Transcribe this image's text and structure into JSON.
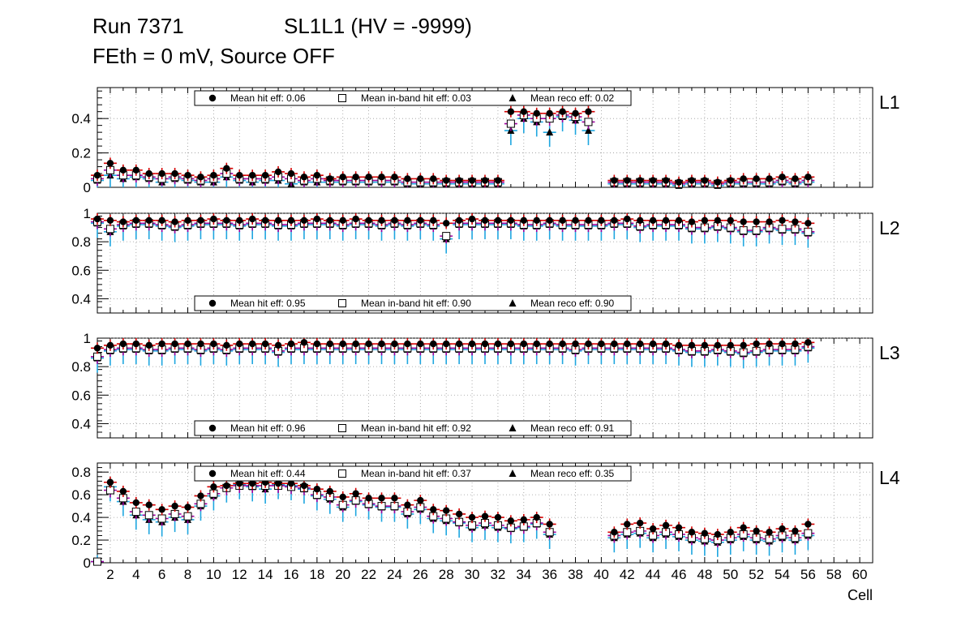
{
  "title": {
    "run": "Run 7371",
    "sl": "SL1L1 (HV = -9999)",
    "subtitle": "FEth = 0 mV, Source OFF"
  },
  "colors": {
    "hit": "#000000",
    "hit_err": "#d40000",
    "inband": "#000000",
    "inband_err": "#a000a0",
    "reco": "#000000",
    "reco_err": "#1ea6e0",
    "grid": "#9a9a9a"
  },
  "chart_data": {
    "type": "scatter",
    "xlabel": "Cell",
    "x_tick_labels": [
      "2",
      "4",
      "6",
      "8",
      "10",
      "12",
      "14",
      "16",
      "18",
      "20",
      "22",
      "24",
      "26",
      "28",
      "30",
      "32",
      "34",
      "36",
      "38",
      "40",
      "42",
      "44",
      "46",
      "48",
      "50",
      "52",
      "54",
      "56",
      "58",
      "60"
    ],
    "xlim": [
      1,
      61
    ],
    "panels": [
      {
        "label": "L1",
        "ylim": [
          0,
          0.58
        ],
        "yticks": [
          0,
          0.2,
          0.4
        ],
        "ytick_labels": [
          "0",
          "0.2",
          "0.4"
        ],
        "legend_position": "top",
        "legend": {
          "hit": "Mean hit  eff: 0.06",
          "inband": "Mean in-band hit eff: 0.03",
          "reco": "Mean reco eff: 0.02"
        },
        "cells": [
          1,
          2,
          3,
          4,
          5,
          6,
          7,
          8,
          9,
          10,
          11,
          12,
          13,
          14,
          15,
          16,
          17,
          18,
          19,
          20,
          21,
          22,
          23,
          24,
          25,
          26,
          27,
          28,
          29,
          30,
          31,
          32,
          33,
          34,
          35,
          36,
          37,
          38,
          39,
          40,
          41,
          42,
          43,
          44,
          45,
          46,
          47,
          48,
          49,
          50,
          51,
          52,
          53,
          54,
          55,
          56
        ],
        "hit": [
          0.07,
          0.14,
          0.1,
          0.1,
          0.08,
          0.08,
          0.08,
          0.07,
          0.06,
          0.07,
          0.11,
          0.07,
          0.07,
          0.07,
          0.09,
          0.08,
          0.06,
          0.07,
          0.05,
          0.06,
          0.06,
          0.06,
          0.06,
          0.06,
          0.05,
          0.05,
          0.05,
          0.04,
          0.04,
          0.04,
          0.04,
          0.04,
          0.44,
          0.44,
          0.43,
          0.43,
          0.44,
          0.43,
          0.44,
          null,
          0.04,
          0.04,
          0.04,
          0.04,
          0.04,
          0.03,
          0.04,
          0.04,
          0.03,
          0.04,
          0.05,
          0.05,
          0.05,
          0.06,
          0.05,
          0.06
        ],
        "inband": [
          0.05,
          0.1,
          0.07,
          0.07,
          0.06,
          0.05,
          0.06,
          0.05,
          0.04,
          0.05,
          0.08,
          0.05,
          0.05,
          0.05,
          0.06,
          0.05,
          0.04,
          0.05,
          0.04,
          0.04,
          0.04,
          0.04,
          0.04,
          0.04,
          0.03,
          0.03,
          0.03,
          0.03,
          0.03,
          0.03,
          0.03,
          0.03,
          0.37,
          0.42,
          0.4,
          0.4,
          0.42,
          0.41,
          0.38,
          null,
          0.03,
          0.03,
          0.03,
          0.03,
          0.03,
          0.02,
          0.03,
          0.03,
          0.02,
          0.03,
          0.03,
          0.03,
          0.03,
          0.04,
          0.03,
          0.04
        ],
        "reco": [
          0.04,
          0.07,
          0.05,
          0.06,
          0.05,
          0.03,
          0.05,
          0.04,
          0.03,
          0.03,
          0.06,
          0.04,
          0.03,
          0.04,
          0.04,
          0.02,
          0.03,
          0.03,
          0.03,
          0.03,
          0.03,
          0.03,
          0.03,
          0.03,
          0.02,
          0.02,
          0.02,
          0.02,
          0.02,
          0.02,
          0.02,
          0.02,
          0.33,
          0.4,
          0.38,
          0.32,
          0.41,
          0.39,
          0.33,
          null,
          0.02,
          0.02,
          0.02,
          0.02,
          0.02,
          0.01,
          0.02,
          0.02,
          0.01,
          0.02,
          0.02,
          0.02,
          0.02,
          0.03,
          0.02,
          0.03
        ]
      },
      {
        "label": "L2",
        "ylim": [
          0.3,
          1.0
        ],
        "yticks": [
          0.4,
          0.6,
          0.8,
          1.0
        ],
        "ytick_labels": [
          "0.4",
          "0.6",
          "0.8",
          "1"
        ],
        "legend_position": "bottom",
        "legend": {
          "hit": "Mean hit  eff: 0.95",
          "inband": "Mean in-band hit eff: 0.90",
          "reco": "Mean reco eff: 0.90"
        },
        "cells": [
          1,
          2,
          3,
          4,
          5,
          6,
          7,
          8,
          9,
          10,
          11,
          12,
          13,
          14,
          15,
          16,
          17,
          18,
          19,
          20,
          21,
          22,
          23,
          24,
          25,
          26,
          27,
          28,
          29,
          30,
          31,
          32,
          33,
          34,
          35,
          36,
          37,
          38,
          39,
          40,
          41,
          42,
          43,
          44,
          45,
          46,
          47,
          48,
          49,
          50,
          51,
          52,
          53,
          54,
          55,
          56
        ],
        "hit": [
          0.96,
          0.95,
          0.94,
          0.95,
          0.95,
          0.95,
          0.94,
          0.95,
          0.95,
          0.96,
          0.95,
          0.95,
          0.96,
          0.95,
          0.95,
          0.95,
          0.95,
          0.96,
          0.95,
          0.95,
          0.96,
          0.95,
          0.95,
          0.95,
          0.95,
          0.95,
          0.95,
          0.93,
          0.95,
          0.96,
          0.95,
          0.95,
          0.95,
          0.95,
          0.95,
          0.95,
          0.95,
          0.95,
          0.95,
          0.95,
          0.95,
          0.96,
          0.95,
          0.95,
          0.95,
          0.95,
          0.94,
          0.95,
          0.95,
          0.95,
          0.94,
          0.94,
          0.94,
          0.95,
          0.94,
          0.93
        ],
        "inband": [
          0.94,
          0.89,
          0.92,
          0.93,
          0.93,
          0.92,
          0.91,
          0.92,
          0.93,
          0.93,
          0.93,
          0.92,
          0.93,
          0.93,
          0.92,
          0.92,
          0.93,
          0.93,
          0.93,
          0.92,
          0.93,
          0.93,
          0.92,
          0.93,
          0.92,
          0.93,
          0.92,
          0.84,
          0.93,
          0.93,
          0.93,
          0.93,
          0.93,
          0.92,
          0.92,
          0.93,
          0.92,
          0.92,
          0.92,
          0.92,
          0.93,
          0.93,
          0.91,
          0.92,
          0.92,
          0.92,
          0.9,
          0.9,
          0.91,
          0.9,
          0.88,
          0.88,
          0.9,
          0.89,
          0.89,
          0.87
        ],
        "reco": [
          0.93,
          0.87,
          0.91,
          0.92,
          0.92,
          0.91,
          0.9,
          0.91,
          0.92,
          0.92,
          0.92,
          0.91,
          0.92,
          0.92,
          0.91,
          0.91,
          0.92,
          0.92,
          0.92,
          0.91,
          0.92,
          0.92,
          0.91,
          0.92,
          0.91,
          0.92,
          0.91,
          0.82,
          0.92,
          0.92,
          0.92,
          0.92,
          0.92,
          0.91,
          0.91,
          0.92,
          0.91,
          0.91,
          0.91,
          0.91,
          0.92,
          0.92,
          0.9,
          0.91,
          0.91,
          0.91,
          0.89,
          0.89,
          0.9,
          0.89,
          0.87,
          0.87,
          0.89,
          0.88,
          0.88,
          0.86
        ]
      },
      {
        "label": "L3",
        "ylim": [
          0.3,
          1.0
        ],
        "yticks": [
          0.4,
          0.6,
          0.8,
          1.0
        ],
        "ytick_labels": [
          "0.4",
          "0.6",
          "0.8",
          "1"
        ],
        "legend_position": "bottom",
        "legend": {
          "hit": "Mean hit  eff: 0.96",
          "inband": "Mean in-band hit eff: 0.92",
          "reco": "Mean reco eff: 0.91"
        },
        "cells": [
          1,
          2,
          3,
          4,
          5,
          6,
          7,
          8,
          9,
          10,
          11,
          12,
          13,
          14,
          15,
          16,
          17,
          18,
          19,
          20,
          21,
          22,
          23,
          24,
          25,
          26,
          27,
          28,
          29,
          30,
          31,
          32,
          33,
          34,
          35,
          36,
          37,
          38,
          39,
          40,
          41,
          42,
          43,
          44,
          45,
          46,
          47,
          48,
          49,
          50,
          51,
          52,
          53,
          54,
          55,
          56
        ],
        "hit": [
          0.93,
          0.95,
          0.96,
          0.96,
          0.95,
          0.96,
          0.96,
          0.96,
          0.96,
          0.96,
          0.95,
          0.96,
          0.96,
          0.96,
          0.95,
          0.96,
          0.97,
          0.96,
          0.96,
          0.96,
          0.96,
          0.96,
          0.96,
          0.96,
          0.96,
          0.96,
          0.96,
          0.96,
          0.96,
          0.96,
          0.96,
          0.96,
          0.96,
          0.96,
          0.96,
          0.96,
          0.96,
          0.96,
          0.96,
          0.96,
          0.96,
          0.96,
          0.96,
          0.96,
          0.96,
          0.95,
          0.95,
          0.95,
          0.95,
          0.95,
          0.95,
          0.96,
          0.96,
          0.96,
          0.96,
          0.97
        ],
        "inband": [
          0.87,
          0.92,
          0.93,
          0.93,
          0.92,
          0.92,
          0.93,
          0.93,
          0.92,
          0.93,
          0.92,
          0.93,
          0.93,
          0.93,
          0.91,
          0.93,
          0.93,
          0.93,
          0.93,
          0.93,
          0.93,
          0.93,
          0.93,
          0.93,
          0.93,
          0.93,
          0.93,
          0.93,
          0.93,
          0.93,
          0.93,
          0.93,
          0.93,
          0.93,
          0.93,
          0.93,
          0.93,
          0.92,
          0.93,
          0.93,
          0.93,
          0.93,
          0.93,
          0.93,
          0.93,
          0.92,
          0.91,
          0.91,
          0.92,
          0.91,
          0.9,
          0.91,
          0.92,
          0.92,
          0.92,
          0.94
        ],
        "reco": [
          0.86,
          0.91,
          0.92,
          0.92,
          0.91,
          0.91,
          0.92,
          0.92,
          0.91,
          0.92,
          0.91,
          0.92,
          0.92,
          0.92,
          0.9,
          0.92,
          0.92,
          0.92,
          0.92,
          0.92,
          0.92,
          0.92,
          0.92,
          0.92,
          0.92,
          0.92,
          0.92,
          0.92,
          0.92,
          0.92,
          0.92,
          0.92,
          0.92,
          0.92,
          0.92,
          0.92,
          0.92,
          0.91,
          0.92,
          0.92,
          0.92,
          0.92,
          0.92,
          0.92,
          0.92,
          0.91,
          0.9,
          0.9,
          0.91,
          0.9,
          0.89,
          0.9,
          0.91,
          0.91,
          0.91,
          0.93
        ]
      },
      {
        "label": "L4",
        "ylim": [
          0,
          0.88
        ],
        "yticks": [
          0,
          0.2,
          0.4,
          0.6,
          0.8
        ],
        "ytick_labels": [
          "0",
          "0.2",
          "0.4",
          "0.6",
          "0.8"
        ],
        "legend_position": "top",
        "legend": {
          "hit": "Mean hit  eff: 0.44",
          "inband": "Mean in-band hit eff: 0.37",
          "reco": "Mean reco eff: 0.35"
        },
        "cells": [
          1,
          2,
          3,
          4,
          5,
          6,
          7,
          8,
          9,
          10,
          11,
          12,
          13,
          14,
          15,
          16,
          17,
          18,
          19,
          20,
          21,
          22,
          23,
          24,
          25,
          26,
          27,
          28,
          29,
          30,
          31,
          32,
          33,
          34,
          35,
          36,
          37,
          38,
          39,
          40,
          41,
          42,
          43,
          44,
          45,
          46,
          47,
          48,
          49,
          50,
          51,
          52,
          53,
          54,
          55,
          56
        ],
        "hit": [
          null,
          0.71,
          0.63,
          0.53,
          0.51,
          0.47,
          0.5,
          0.49,
          0.59,
          0.67,
          0.68,
          0.7,
          0.7,
          0.71,
          0.7,
          0.7,
          0.68,
          0.65,
          0.63,
          0.58,
          0.61,
          0.57,
          0.57,
          0.57,
          0.51,
          0.55,
          0.47,
          0.46,
          0.43,
          0.4,
          0.41,
          0.4,
          0.37,
          0.38,
          0.4,
          0.34,
          null,
          null,
          null,
          null,
          0.27,
          0.34,
          0.35,
          0.3,
          0.33,
          0.31,
          0.27,
          0.26,
          0.25,
          0.27,
          0.31,
          0.28,
          0.27,
          0.3,
          0.28,
          0.34
        ],
        "inband": [
          0.01,
          0.64,
          0.57,
          0.45,
          0.42,
          0.39,
          0.43,
          0.41,
          0.52,
          0.61,
          0.66,
          0.68,
          0.68,
          0.68,
          0.68,
          0.67,
          0.66,
          0.6,
          0.58,
          0.51,
          0.55,
          0.52,
          0.5,
          0.5,
          0.45,
          0.49,
          0.41,
          0.39,
          0.36,
          0.33,
          0.35,
          0.33,
          0.31,
          0.32,
          0.35,
          0.27,
          null,
          null,
          null,
          null,
          0.24,
          0.27,
          0.28,
          0.24,
          0.27,
          0.25,
          0.22,
          0.21,
          0.2,
          0.22,
          0.25,
          0.22,
          0.21,
          0.24,
          0.22,
          0.26
        ],
        "reco": [
          0.01,
          0.67,
          0.54,
          0.42,
          0.38,
          0.36,
          0.4,
          0.38,
          0.5,
          0.59,
          0.66,
          0.69,
          0.67,
          0.65,
          0.69,
          0.68,
          0.65,
          0.59,
          0.56,
          0.49,
          0.54,
          0.51,
          0.49,
          0.49,
          0.43,
          0.47,
          0.39,
          0.37,
          0.35,
          0.31,
          0.33,
          0.31,
          0.3,
          0.31,
          0.34,
          0.25,
          null,
          null,
          null,
          null,
          0.22,
          0.25,
          0.26,
          0.22,
          0.25,
          0.23,
          0.2,
          0.19,
          0.18,
          0.2,
          0.23,
          0.2,
          0.19,
          0.22,
          0.2,
          0.24
        ]
      }
    ]
  }
}
